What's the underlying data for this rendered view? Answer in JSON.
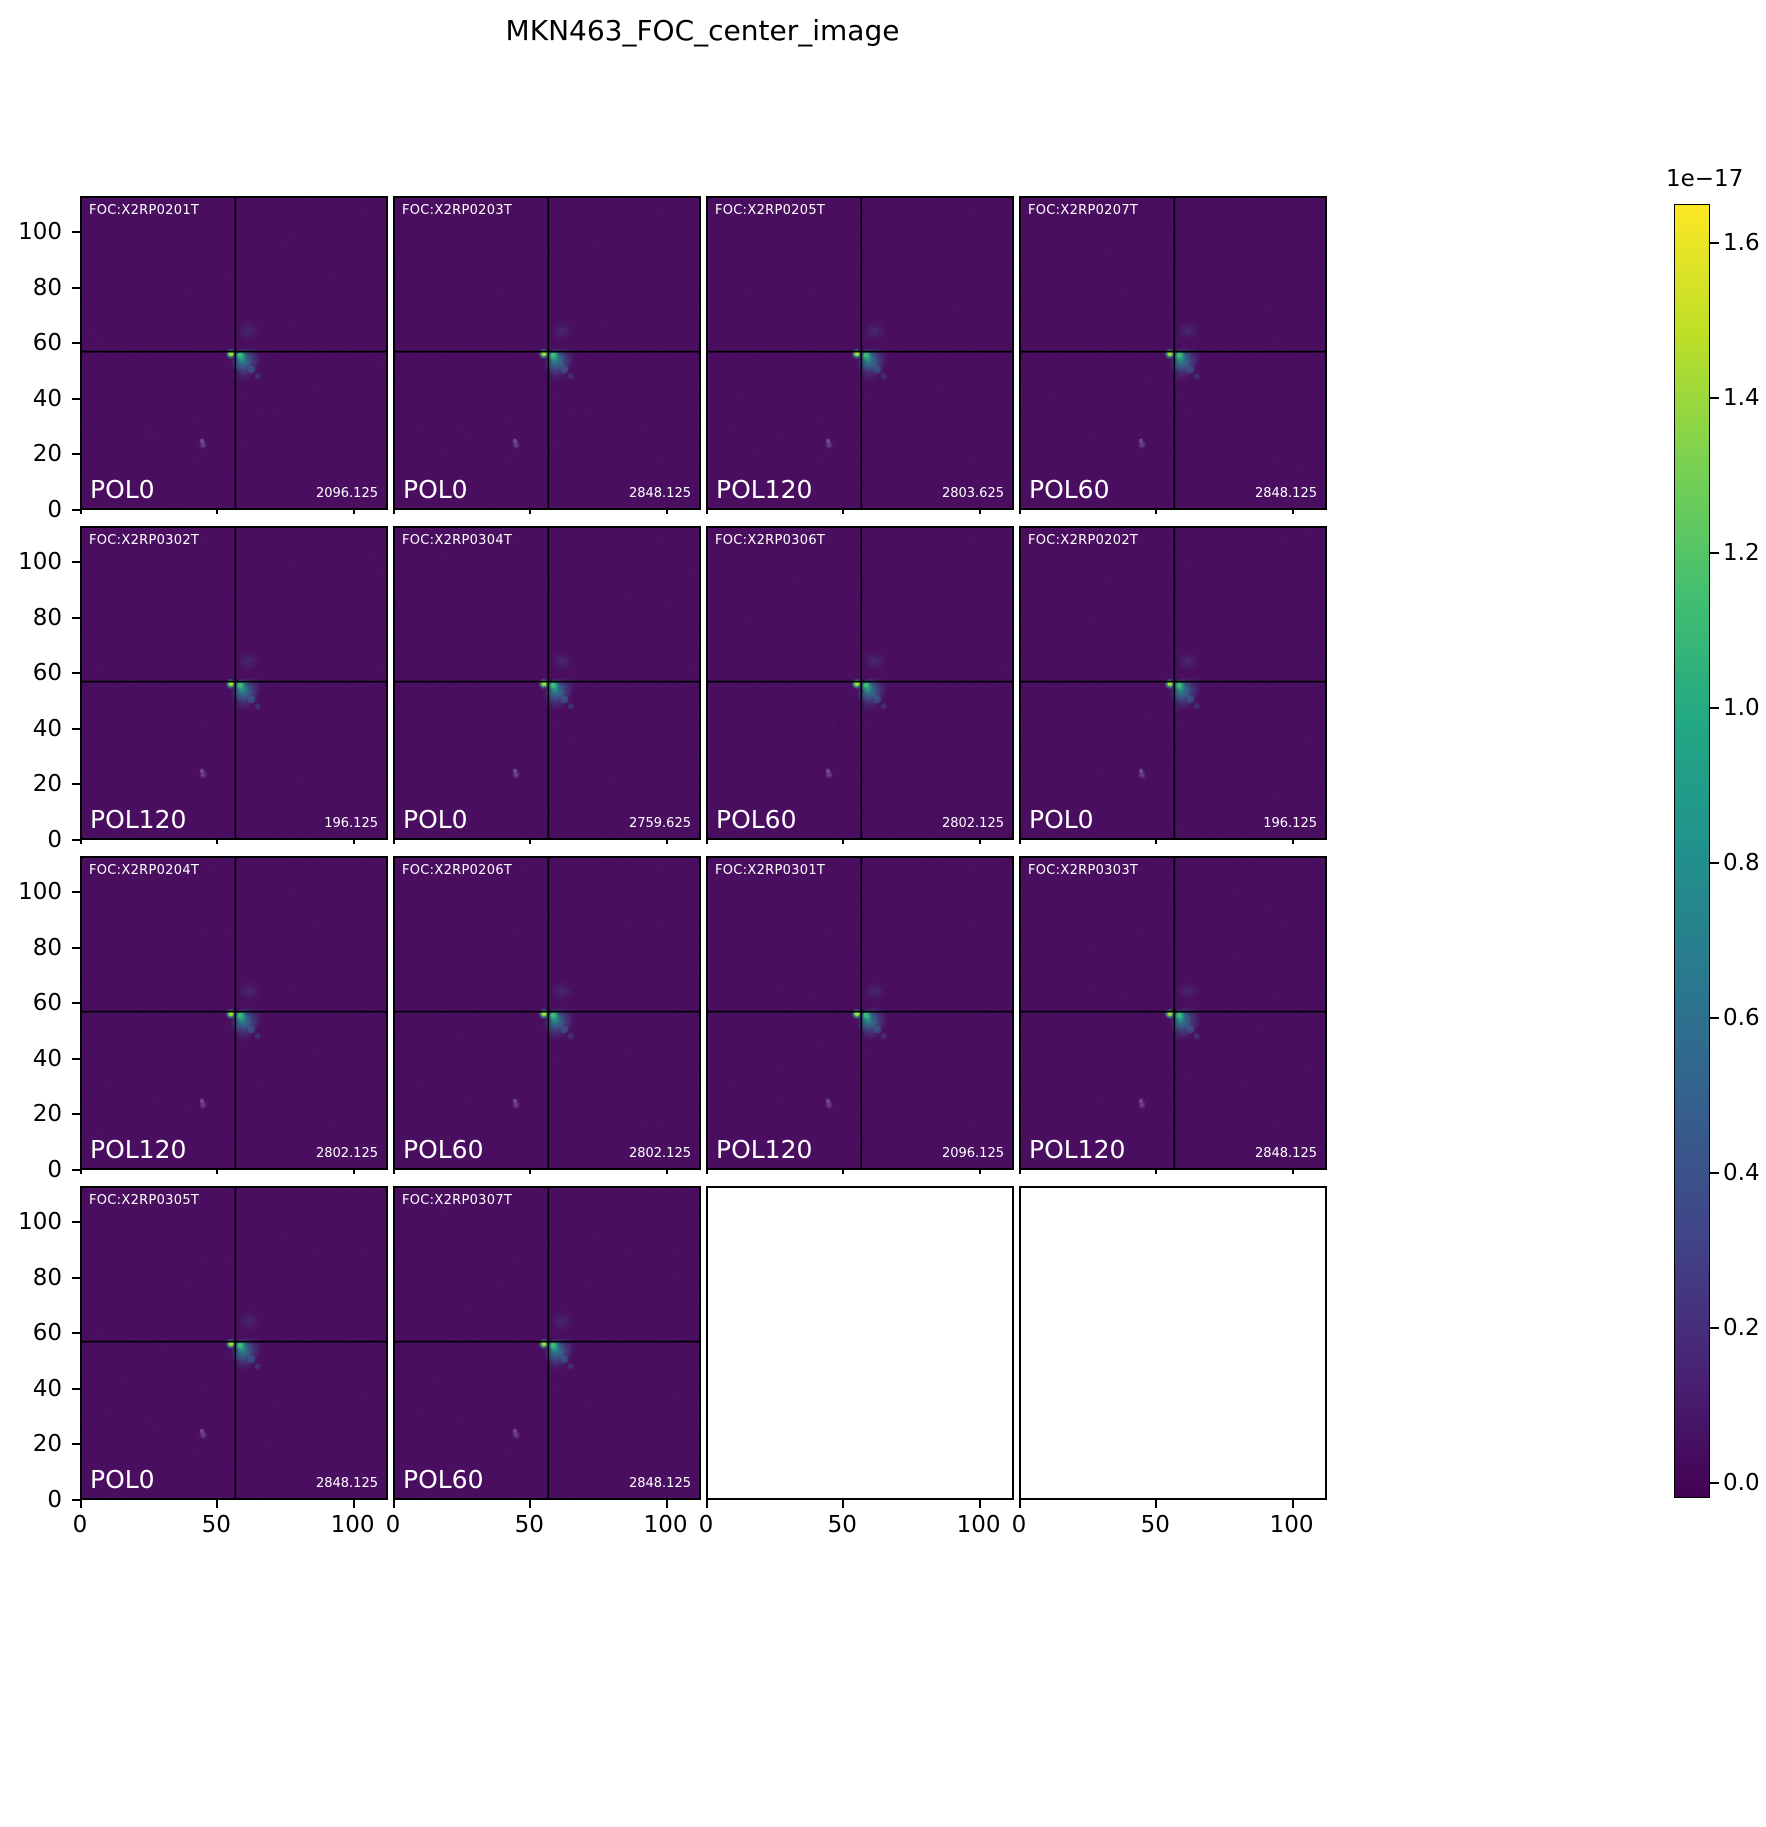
{
  "figure": {
    "title": "MKN463_FOC_center_image"
  },
  "chart_data": {
    "type": "heatmap",
    "title": "MKN463_FOC_center_image",
    "grid": {
      "rows": 4,
      "cols": 4
    },
    "x_range": [
      0,
      113
    ],
    "y_range": [
      0,
      113
    ],
    "x_ticks": [
      0,
      50,
      100
    ],
    "y_ticks": [
      0,
      20,
      40,
      60,
      80,
      100
    ],
    "crosshair": {
      "x": 57,
      "y": 57
    },
    "source_peak": {
      "x": 57,
      "y": 56
    },
    "secondary_spot": {
      "x": 45,
      "y": 23
    },
    "image_bg": "#46085c",
    "colorbar": {
      "scale_label": "1e−17",
      "tick_values": [
        1.6,
        1.4,
        1.2,
        1.0,
        0.8,
        0.6,
        0.4,
        0.2,
        0.0
      ],
      "range": [
        -0.02,
        1.65
      ],
      "colormap": "viridis",
      "legend_position": "right",
      "colors": [
        "#fde725",
        "#bddf26",
        "#7ad151",
        "#44bf70",
        "#22a884",
        "#21918c",
        "#2a788e",
        "#355f8d",
        "#414487",
        "#482475",
        "#440154"
      ]
    },
    "panels": [
      {
        "row": 0,
        "col": 0,
        "foc": "FOC:X2RP0201T",
        "pol": "POL0",
        "value": "2096.125",
        "empty": false
      },
      {
        "row": 0,
        "col": 1,
        "foc": "FOC:X2RP0203T",
        "pol": "POL0",
        "value": "2848.125",
        "empty": false
      },
      {
        "row": 0,
        "col": 2,
        "foc": "FOC:X2RP0205T",
        "pol": "POL120",
        "value": "2803.625",
        "empty": false
      },
      {
        "row": 0,
        "col": 3,
        "foc": "FOC:X2RP0207T",
        "pol": "POL60",
        "value": "2848.125",
        "empty": false
      },
      {
        "row": 1,
        "col": 0,
        "foc": "FOC:X2RP0302T",
        "pol": "POL120",
        "value": "196.125",
        "empty": false
      },
      {
        "row": 1,
        "col": 1,
        "foc": "FOC:X2RP0304T",
        "pol": "POL0",
        "value": "2759.625",
        "empty": false
      },
      {
        "row": 1,
        "col": 2,
        "foc": "FOC:X2RP0306T",
        "pol": "POL60",
        "value": "2802.125",
        "empty": false
      },
      {
        "row": 1,
        "col": 3,
        "foc": "FOC:X2RP0202T",
        "pol": "POL0",
        "value": "196.125",
        "empty": false
      },
      {
        "row": 2,
        "col": 0,
        "foc": "FOC:X2RP0204T",
        "pol": "POL120",
        "value": "2802.125",
        "empty": false
      },
      {
        "row": 2,
        "col": 1,
        "foc": "FOC:X2RP0206T",
        "pol": "POL60",
        "value": "2802.125",
        "empty": false
      },
      {
        "row": 2,
        "col": 2,
        "foc": "FOC:X2RP0301T",
        "pol": "POL120",
        "value": "2096.125",
        "empty": false
      },
      {
        "row": 2,
        "col": 3,
        "foc": "FOC:X2RP0303T",
        "pol": "POL120",
        "value": "2848.125",
        "empty": false
      },
      {
        "row": 3,
        "col": 0,
        "foc": "FOC:X2RP0305T",
        "pol": "POL0",
        "value": "2848.125",
        "empty": false
      },
      {
        "row": 3,
        "col": 1,
        "foc": "FOC:X2RP0307T",
        "pol": "POL60",
        "value": "2848.125",
        "empty": false
      },
      {
        "row": 3,
        "col": 2,
        "empty": true
      },
      {
        "row": 3,
        "col": 3,
        "empty": true
      }
    ]
  }
}
